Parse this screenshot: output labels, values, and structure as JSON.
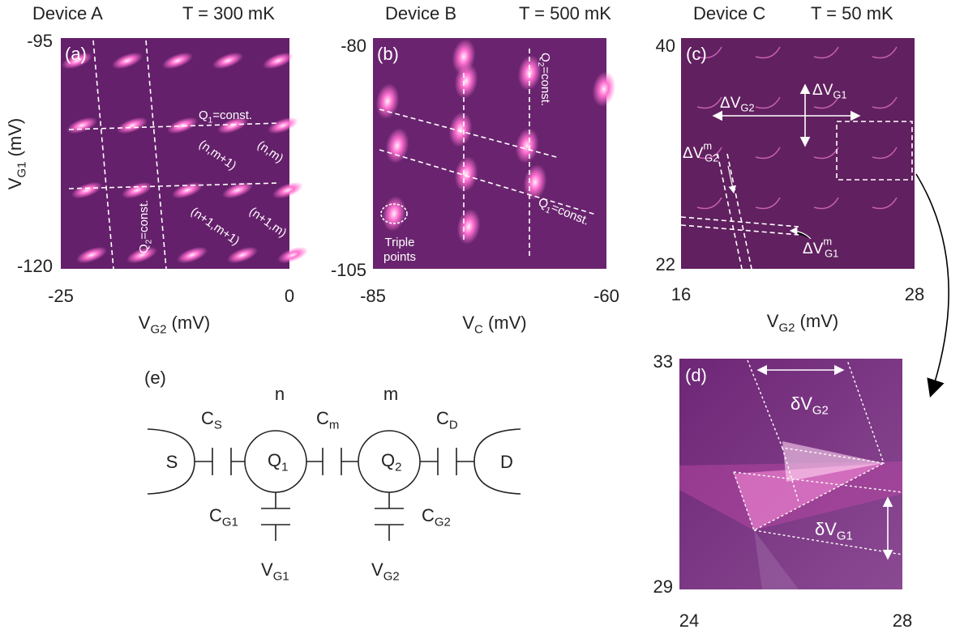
{
  "panels": {
    "a": {
      "label": "(a)",
      "device": "Device A",
      "temperature": "T = 300 mK",
      "yticks": [
        -95,
        -120
      ],
      "xticks": [
        -25,
        0
      ],
      "ylabel": {
        "main": "V",
        "sub": "G1",
        "rest": " (mV)"
      },
      "xlabel": {
        "main": "V",
        "sub": "G2",
        "rest": " (mV)"
      },
      "annotations": {
        "q1": {
          "main": "Q",
          "sub": "1",
          "rest": "=const."
        },
        "q2": {
          "main": "Q",
          "sub": "2",
          "rest": "=const."
        },
        "regions": [
          "(n,m+1)",
          "(n,m)",
          "(n+1,m+1)",
          "(n+1,m)"
        ]
      }
    },
    "b": {
      "label": "(b)",
      "device": "Device B",
      "temperature": "T = 500 mK",
      "yticks": [
        -80,
        -105
      ],
      "xticks": [
        -85,
        -60
      ],
      "xlabel": {
        "main": "V",
        "sub": "C",
        "rest": " (mV)"
      },
      "annotations": {
        "q2": {
          "main": "Q",
          "sub": "2",
          "rest": "=const."
        },
        "q1": {
          "main": "Q",
          "sub": "1",
          "rest": "=const."
        },
        "triple": [
          "Triple",
          "points"
        ]
      }
    },
    "c": {
      "label": "(c)",
      "device": "Device C",
      "temperature": "T = 50 mK",
      "yticks": [
        40,
        22
      ],
      "xticks": [
        16,
        28
      ],
      "xlabel": {
        "main": "V",
        "sub": "G2",
        "rest": " (mV)"
      },
      "annotations": {
        "dvg2": {
          "main": "ΔV",
          "sub": "G2"
        },
        "dvg1": {
          "main": "ΔV",
          "sub": "G1"
        },
        "dvg2m": {
          "main": "ΔV",
          "sup": "m",
          "sub": "G2"
        },
        "dvg1m": {
          "main": "ΔV",
          "sup": "m",
          "sub": "G1"
        }
      }
    },
    "d": {
      "label": "(d)",
      "yticks": [
        33,
        29
      ],
      "xticks": [
        24,
        28
      ],
      "annotations": {
        "dvg2": {
          "main": "δV",
          "sub": "G2"
        },
        "dvg1": {
          "main": "δV",
          "sub": "G1"
        }
      }
    },
    "e": {
      "label": "(e)",
      "n": "n",
      "m": "m",
      "s": "S",
      "d": "D",
      "cs": {
        "main": "C",
        "sub": "S"
      },
      "cm": {
        "main": "C",
        "sub": "m"
      },
      "cd": {
        "main": "C",
        "sub": "D"
      },
      "cg1": {
        "main": "C",
        "sub": "G1"
      },
      "cg2": {
        "main": "C",
        "sub": "G2"
      },
      "q1": {
        "main": "Q",
        "sub": "1"
      },
      "q2": {
        "main": "Q",
        "sub": "2"
      },
      "vg1": {
        "main": "V",
        "sub": "G1"
      },
      "vg2": {
        "main": "V",
        "sub": "G2"
      }
    }
  }
}
